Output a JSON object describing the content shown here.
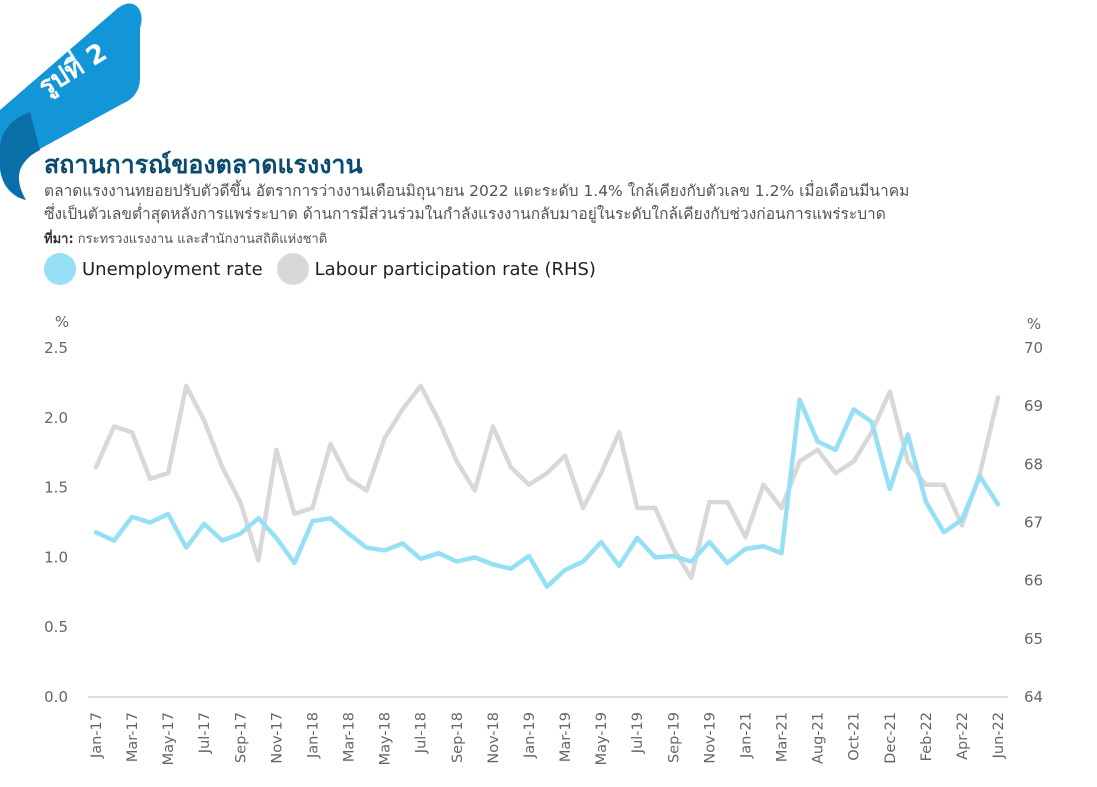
{
  "badge": {
    "label": "รูปที่ 2"
  },
  "header": {
    "title": "สถานการณ์ของตลาดแรงงาน",
    "subtitle_line1": "ตลาดแรงงานทยอยปรับตัวดีขึ้น อัตราการว่างงานเดือนมิถุนายน 2022 แตะระดับ 1.4% ใกล้เคียงกับตัวเลข 1.2% เมื่อเดือนมีนาคม",
    "subtitle_line2": "ซึ่งเป็นตัวเลขต่ำสุดหลังการแพร่ระบาด ด้านการมีส่วนร่วมในกำลังแรงงานกลับมาอยู่ในระดับใกล้เคียงกับช่วงก่อนการแพร่ระบาด",
    "source_label": "ที่มา:",
    "source_text": " กระทรวงแรงงาน และสำนักงานสถิติแห่งชาติ"
  },
  "colors": {
    "unemployment": "#96e0f6",
    "participation": "#d8d8d8",
    "axis": "#cfcfcf",
    "tick": "#666666",
    "title": "#0b4a6f",
    "ribbon": "#1296d8"
  },
  "chart_data": {
    "type": "line",
    "x": [
      "Jan-17",
      "Feb-17",
      "Mar-17",
      "Apr-17",
      "May-17",
      "Jun-17",
      "Jul-17",
      "Aug-17",
      "Sep-17",
      "Oct-17",
      "Nov-17",
      "Dec-17",
      "Jan-18",
      "Feb-18",
      "Mar-18",
      "Apr-18",
      "May-18",
      "Jun-18",
      "Jul-18",
      "Aug-18",
      "Sep-18",
      "Oct-18",
      "Nov-18",
      "Dec-18",
      "Jan-19",
      "Feb-19",
      "Mar-19",
      "Apr-19",
      "May-19",
      "Jun-19",
      "Jul-19",
      "Aug-19",
      "Sep-19",
      "Oct-19",
      "Nov-19",
      "Dec-19",
      "Jan-21",
      "Feb-21",
      "Mar-21",
      "Apr-21",
      "Aug-21",
      "Sep-21",
      "Oct-21",
      "Nov-21",
      "Dec-21",
      "Jan-22",
      "Feb-22",
      "Mar-22",
      "Apr-22",
      "May-22",
      "Jun-22"
    ],
    "x_tick_labels": [
      "Jan-17",
      "Mar-17",
      "May-17",
      "Jul-17",
      "Sep-17",
      "Nov-17",
      "Jan-18",
      "Mar-18",
      "May-18",
      "Jul-18",
      "Sep-18",
      "Nov-18",
      "Jan-19",
      "Mar-19",
      "May-19",
      "Jul-19",
      "Sep-19",
      "Nov-19",
      "Jan-21",
      "Mar-21",
      "Aug-21",
      "Oct-21",
      "Dec-21",
      "Feb-22",
      "Apr-22",
      "Jun-22"
    ],
    "series": [
      {
        "name": "Unemployment rate",
        "axis": "left",
        "values": [
          1.18,
          1.12,
          1.29,
          1.25,
          1.31,
          1.07,
          1.24,
          1.12,
          1.17,
          1.28,
          1.14,
          0.96,
          1.26,
          1.28,
          1.17,
          1.07,
          1.05,
          1.1,
          0.99,
          1.03,
          0.97,
          1.0,
          0.95,
          0.92,
          1.01,
          0.79,
          0.91,
          0.97,
          1.11,
          0.94,
          1.14,
          1.0,
          1.01,
          0.97,
          1.11,
          0.96,
          1.06,
          1.08,
          1.03,
          2.13,
          1.83,
          1.77,
          2.06,
          1.97,
          1.49,
          1.88,
          1.4,
          1.18,
          1.27,
          1.58,
          1.38
        ]
      },
      {
        "name": "Labour participation rate",
        "axis": "right",
        "values": [
          67.95,
          68.65,
          68.55,
          67.75,
          67.85,
          69.35,
          68.75,
          67.95,
          67.35,
          66.35,
          68.25,
          67.15,
          67.25,
          68.35,
          67.75,
          67.55,
          68.45,
          68.95,
          69.35,
          68.75,
          68.05,
          67.55,
          68.65,
          67.95,
          67.65,
          67.85,
          68.15,
          67.25,
          67.85,
          68.55,
          67.25,
          67.25,
          66.55,
          66.05,
          67.35,
          67.35,
          66.75,
          67.65,
          67.25,
          68.05,
          68.25,
          67.85,
          68.05,
          68.55,
          69.25,
          68.05,
          67.65,
          67.65,
          66.95,
          67.85,
          69.15
        ]
      }
    ],
    "y_left": {
      "label": "%",
      "ylim": [
        0,
        2.5
      ],
      "ticks": [
        "0.0",
        "0.5",
        "1.0",
        "1.5",
        "2.0",
        "2.5"
      ]
    },
    "y_right": {
      "label": "%",
      "ylim": [
        64,
        70
      ],
      "ticks": [
        "64",
        "65",
        "66",
        "67",
        "68",
        "69",
        "70"
      ]
    },
    "legend": [
      {
        "label": "Unemployment rate"
      },
      {
        "label": "Labour participation rate (RHS)"
      }
    ],
    "grid": false,
    "legend_position": "top-left"
  }
}
